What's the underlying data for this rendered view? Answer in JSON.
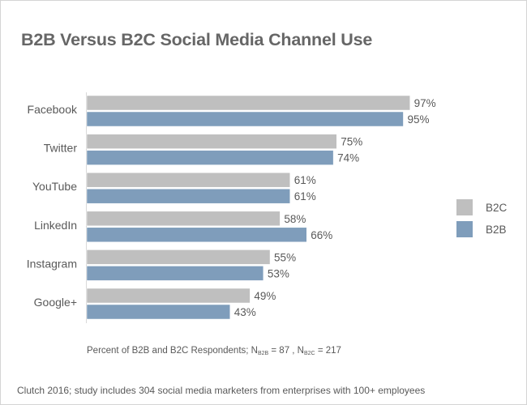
{
  "chart_data": {
    "type": "bar",
    "orientation": "horizontal",
    "title": "B2B Versus B2C Social Media Channel Use",
    "categories": [
      "Facebook",
      "Twitter",
      "YouTube",
      "LinkedIn",
      "Instagram",
      "Google+"
    ],
    "series": [
      {
        "name": "B2C",
        "values": [
          97,
          75,
          61,
          58,
          55,
          49
        ],
        "color": "#bfbfbf"
      },
      {
        "name": "B2B",
        "values": [
          95,
          74,
          61,
          66,
          53,
          43
        ],
        "color": "#7f9dbb"
      }
    ],
    "value_suffix": "%",
    "xlim": [
      0,
      100
    ],
    "grid": false,
    "legend": "right"
  },
  "note": {
    "prefix": "Percent of B2B and B2C Respondents; N",
    "sub1": "B2B",
    "mid": " = 87 , N",
    "sub2": "B2C",
    "suffix": " = 217"
  },
  "source": "Clutch 2016; study includes 304 social media marketers from enterprises with 100+ employees"
}
